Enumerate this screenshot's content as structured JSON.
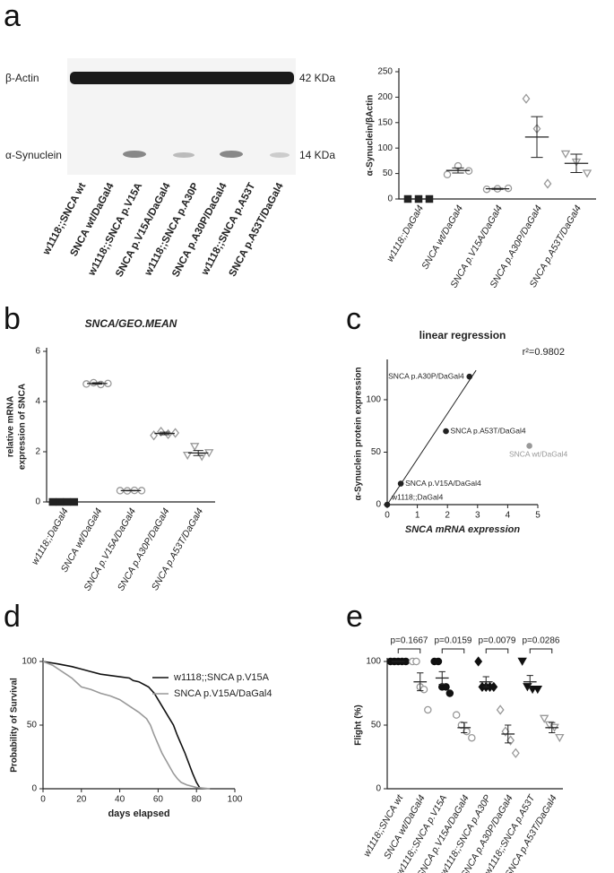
{
  "panel_labels": [
    "a",
    "b",
    "c",
    "d",
    "e"
  ],
  "blot": {
    "bands": [
      "β-Actin",
      "α-Synuclein"
    ],
    "sizes": [
      "42 KDa",
      "14 KDa"
    ],
    "lanes": [
      "w1118;;SNCA wt",
      "SNCA wt/DaGal4",
      "w1118;;SNCA p.V15A",
      "SNCA p.V15A/DaGal4",
      "w1118;;SNCA p.A30P",
      "SNCA p.A30P/DaGal4",
      "w1118;;SNCA p.A53T",
      "SNCA p.A53T/DaGal4"
    ]
  },
  "chart_data": [
    {
      "type": "dot",
      "ylabel": "α-Synuclein/βActin",
      "categories": [
        "w1118;;DaGal4",
        "SNCA wt/DaGal4",
        "SNCA p.V15A/DaGal4",
        "SNCA p.A30P/DaGal4",
        "SNCA p.A53T/DaGal4"
      ],
      "points": [
        [
          0,
          0,
          0
        ],
        [
          48,
          65,
          55
        ],
        [
          19,
          20,
          21
        ],
        [
          197,
          138,
          30
        ],
        [
          88,
          72,
          50
        ]
      ],
      "means": [
        0,
        56,
        20,
        121.7,
        70
      ],
      "sem": [
        0,
        5,
        1,
        40,
        18
      ],
      "ylim": [
        0,
        250
      ],
      "yticks": [
        0,
        50,
        100,
        150,
        200,
        250
      ],
      "markers": [
        "square",
        "circle",
        "circle",
        "diamond",
        "triangle-down"
      ],
      "filled": [
        true,
        false,
        false,
        false,
        false
      ],
      "colors": [
        "#222222",
        "#999999",
        "#999999",
        "#999999",
        "#999999"
      ]
    },
    {
      "type": "dot",
      "title": "SNCA/GEO.MEAN",
      "ylabel": [
        "relative mRNA",
        "expression of SNCA"
      ],
      "categories": [
        "w1118;;DaGal4",
        "SNCA wt/DaGal4",
        "SNCA p.V15A/DaGal4",
        "SNCA p.A30P/DaGal4",
        "SNCA p.A53T/DaGal4"
      ],
      "points": [
        [
          0,
          0,
          0,
          0
        ],
        [
          4.7,
          4.75,
          4.68,
          4.72
        ],
        [
          0.45,
          0.44,
          0.46,
          0.45
        ],
        [
          2.65,
          2.8,
          2.7,
          2.75
        ],
        [
          1.85,
          2.2,
          1.8,
          1.95
        ]
      ],
      "means": [
        0,
        4.72,
        0.45,
        2.73,
        1.95
      ],
      "sem": [
        0,
        0.03,
        0.01,
        0.05,
        0.1
      ],
      "ylim": [
        0,
        6
      ],
      "yticks": [
        0,
        2,
        4,
        6
      ],
      "markers": [
        "square",
        "circle",
        "circle",
        "diamond",
        "triangle-down"
      ],
      "filled": [
        true,
        false,
        false,
        false,
        false
      ],
      "colors": [
        "#222222",
        "#999999",
        "#999999",
        "#999999",
        "#999999"
      ]
    },
    {
      "type": "scatter",
      "title": "linear regression",
      "annotation": "r²=0.9802",
      "xlabel": "SNCA mRNA expression",
      "ylabel": "α-Synuclein protein expression",
      "x": [
        0,
        0.45,
        1.95,
        2.73,
        4.72
      ],
      "values": [
        0,
        20,
        70,
        122,
        56
      ],
      "point_labels": [
        "w1118;;DaGal4",
        "SNCA p.V15A/DaGal4",
        "SNCA p.A53T/DaGal4",
        "SNCA p.A30P/DaGal4",
        "SNCA wt/DaGal4"
      ],
      "point_colors": [
        "#222222",
        "#222222",
        "#222222",
        "#222222",
        "#999999"
      ],
      "fit_x": [
        0,
        2.95
      ],
      "fit_y": [
        0,
        128
      ],
      "xlim": [
        0,
        5
      ],
      "xticks": [
        0,
        1,
        2,
        3,
        4,
        5
      ],
      "ylim": [
        0,
        135
      ],
      "yticks": [
        0,
        50,
        100
      ]
    },
    {
      "type": "line",
      "xlabel": "days elapsed",
      "ylabel": "Probability of Survival",
      "series": [
        {
          "name": "w1118;;SNCA p.V15A",
          "color": "#111111",
          "x": [
            0,
            8,
            15,
            20,
            25,
            30,
            40,
            45,
            47,
            50,
            55,
            58,
            60,
            62,
            64,
            66,
            68,
            70,
            72,
            74,
            76,
            78,
            80,
            82
          ],
          "values": [
            100,
            98,
            96,
            94,
            92,
            90,
            88,
            87,
            85,
            84,
            80,
            75,
            70,
            65,
            60,
            55,
            50,
            42,
            35,
            28,
            20,
            12,
            5,
            0
          ]
        },
        {
          "name": "SNCA p.V15A/DaGal4",
          "color": "#999999",
          "x": [
            0,
            5,
            8,
            12,
            15,
            20,
            25,
            30,
            35,
            40,
            45,
            50,
            54,
            56,
            58,
            60,
            62,
            65,
            68,
            70,
            72,
            75,
            80,
            87
          ],
          "values": [
            100,
            97,
            94,
            90,
            87,
            80,
            78,
            75,
            73,
            70,
            65,
            60,
            55,
            50,
            42,
            35,
            28,
            20,
            12,
            8,
            5,
            3,
            1,
            0
          ]
        }
      ],
      "xlim": [
        0,
        100
      ],
      "xticks": [
        0,
        20,
        40,
        60,
        80,
        100
      ],
      "ylim": [
        0,
        100
      ],
      "yticks": [
        0,
        50,
        100
      ]
    },
    {
      "type": "dot",
      "ylabel": "Flight (%)",
      "categories": [
        "w1118;;SNCA wt",
        "SNCA wt/DaGal4",
        "w1118;;SNCA p.V15A",
        "SNCA p.V15A/DaGal4",
        "w1118;;SNCA p.A30P",
        "SNCA p.A30P/DaGal4",
        "w1118;;SNCA p.A53T",
        "SNCA p.A53T/DaGal4"
      ],
      "points": [
        [
          100,
          100,
          100,
          100,
          100
        ],
        [
          100,
          100,
          80,
          78,
          62
        ],
        [
          100,
          100,
          80,
          80,
          75
        ],
        [
          58,
          50,
          45,
          40
        ],
        [
          100,
          80,
          80,
          80,
          80
        ],
        [
          62,
          45,
          38,
          28
        ],
        [
          100,
          80,
          78,
          78
        ],
        [
          55,
          50,
          48,
          40
        ]
      ],
      "means": [
        100,
        84,
        87,
        48,
        84,
        43,
        84,
        48
      ],
      "sem": [
        0,
        7,
        5,
        4,
        4,
        7,
        5,
        4
      ],
      "pvalues": [
        "p=0.1667",
        "p=0.0159",
        "p=0.0079",
        "p=0.0286"
      ],
      "ylim": [
        0,
        100
      ],
      "yticks": [
        0,
        50,
        100
      ],
      "markers": [
        "circle",
        "circle",
        "circle",
        "circle",
        "diamond",
        "diamond",
        "triangle-down",
        "triangle-down"
      ],
      "filled": [
        true,
        false,
        true,
        false,
        true,
        false,
        true,
        false
      ],
      "colors": [
        "#111111",
        "#999999",
        "#111111",
        "#999999",
        "#111111",
        "#999999",
        "#111111",
        "#999999"
      ]
    }
  ]
}
